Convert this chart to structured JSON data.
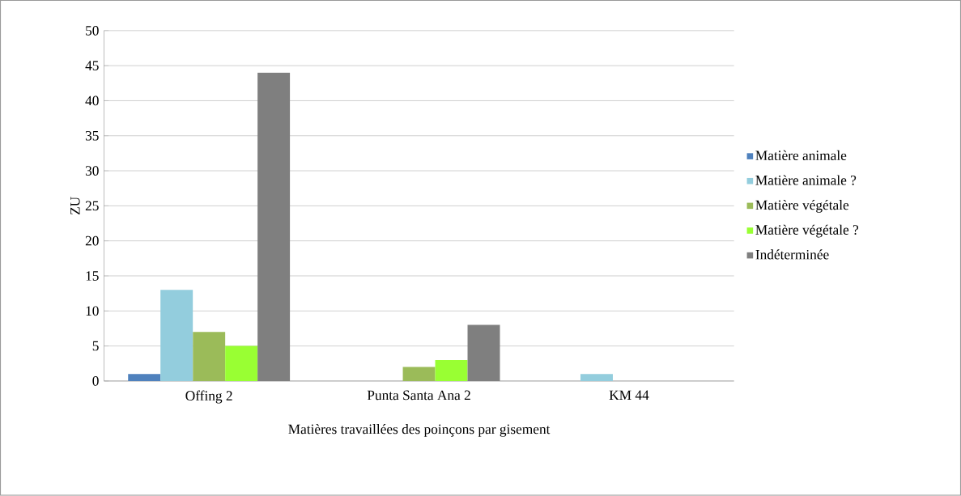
{
  "chart_data": {
    "type": "bar",
    "xlabel": "Matières travaillées des poinçons par gisement",
    "ylabel": "ZU",
    "categories": [
      "Offing 2",
      "Punta Santa Ana 2",
      "KM 44"
    ],
    "series": [
      {
        "name": "Matière animale",
        "color": "#4f81bd",
        "values": [
          1,
          0,
          0
        ]
      },
      {
        "name": "Matière animale ?",
        "color": "#93cddd",
        "values": [
          13,
          0,
          1
        ]
      },
      {
        "name": "Matière végétale",
        "color": "#9bbb59",
        "values": [
          7,
          2,
          0
        ]
      },
      {
        "name": "Matière végétale ?",
        "color": "#99ff33",
        "values": [
          5,
          3,
          0
        ]
      },
      {
        "name": "Indéterminée",
        "color": "#7f7f7f",
        "values": [
          44,
          8,
          0
        ]
      }
    ],
    "ylim": [
      0,
      50
    ],
    "yticks": [
      0,
      5,
      10,
      15,
      20,
      25,
      30,
      35,
      40,
      45,
      50
    ],
    "grid": "y",
    "legend": "right"
  }
}
